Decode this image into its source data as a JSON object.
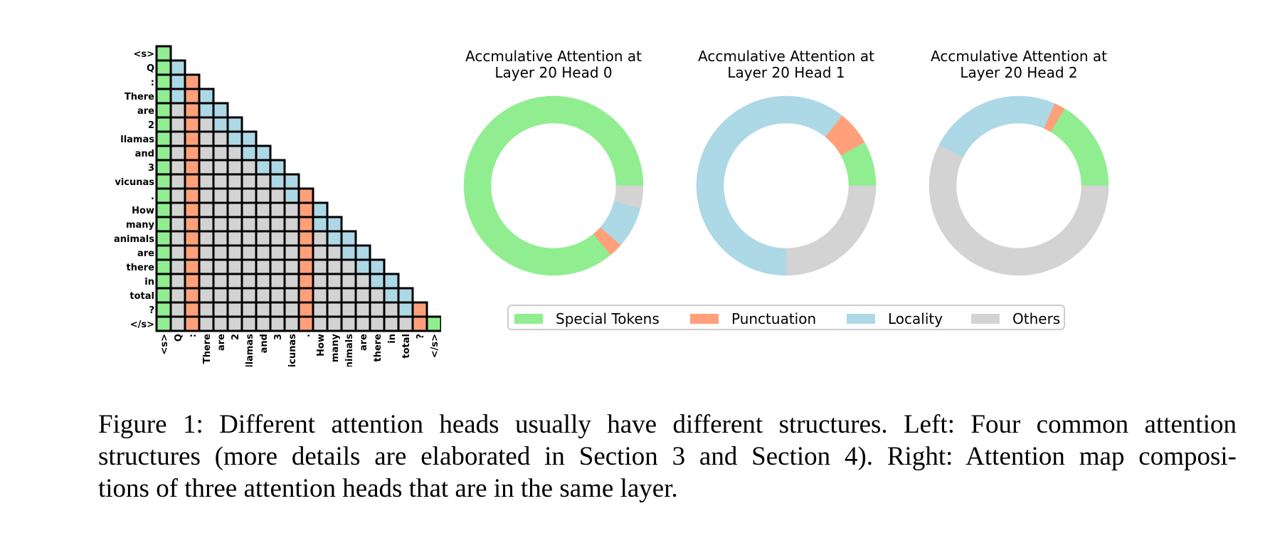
{
  "colors": {
    "special": "#90EE90",
    "punctuation": "#FFA07A",
    "locality": "#ADD8E6",
    "others": "#D3D3D3"
  },
  "chart_data": [
    {
      "type": "heatmap",
      "title": "",
      "tokens": [
        "<s>",
        "Q",
        ":",
        "There",
        "are",
        "2",
        "llamas",
        "and",
        "3",
        "vicunas",
        ".",
        "How",
        "many",
        "animals",
        "are",
        "there",
        "in",
        "total",
        "?",
        "</s>"
      ],
      "cell_category_legend": {
        "S": "Special Tokens",
        "P": "Punctuation",
        "L": "Locality",
        "O": "Others"
      },
      "rows": [
        "S",
        "SL",
        "SLP",
        "SLPL",
        "SOPLL",
        "SOPOLL",
        "SOPOOLL",
        "SOPOOOLL",
        "SOPOOOOLL",
        "SOPOOOOOLL",
        "SOPOOOOOOLP",
        "SOPOOOOOOOPL",
        "SOPOOOOOOOPLL",
        "SOPOOOOOOOPOLL",
        "SOPOOOOOOOPOOLL",
        "SOPOOOOOOOPOOOLL",
        "SOPOOOOOOOPOOOOLL",
        "SOPOOOOOOOPOOOOOLL",
        "SOPOOOOOOOPOOOOOOLP",
        "SOPOOOOOOOPOOOOOOOPS"
      ]
    },
    {
      "type": "pie",
      "title_line1": "Accmulative Attention at",
      "title_line2": "Layer 20 Head 0",
      "labels": [
        "Special Tokens",
        "Punctuation",
        "Locality",
        "Others"
      ],
      "values": [
        86,
        2.5,
        7.5,
        4
      ]
    },
    {
      "type": "pie",
      "title_line1": "Accmulative Attention at",
      "title_line2": "Layer 20 Head 1",
      "labels": [
        "Special Tokens",
        "Punctuation",
        "Locality",
        "Others"
      ],
      "values": [
        6.5,
        5,
        49,
        20
      ]
    },
    {
      "type": "pie",
      "title_line1": "Accmulative Attention at",
      "title_line2": "Layer 20 Head 2",
      "labels": [
        "Special Tokens",
        "Punctuation",
        "Locality",
        "Others"
      ],
      "values": [
        16.5,
        2,
        24,
        57.5
      ]
    }
  ],
  "legend": {
    "items": [
      {
        "label": "Special Tokens",
        "color": "#90EE90"
      },
      {
        "label": "Punctuation",
        "color": "#FFA07A"
      },
      {
        "label": "Locality",
        "color": "#ADD8E6"
      },
      {
        "label": "Others",
        "color": "#D3D3D3"
      }
    ]
  },
  "caption": {
    "line1": "Figure 1: Different attention heads usually have different structures. Left: Four common attention",
    "line2": "structures (more details are elaborated in Section 3 and Section 4). Right: Attention map composi-",
    "line3": "tions of three attention heads that are in the same layer."
  }
}
